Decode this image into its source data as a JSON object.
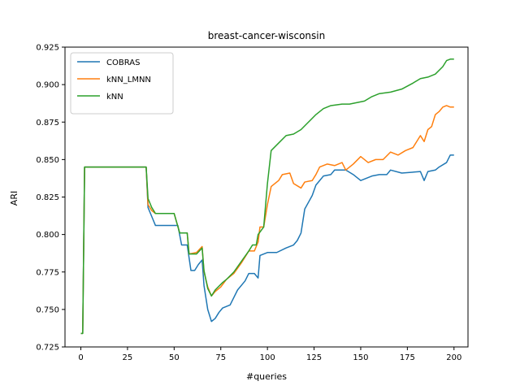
{
  "chart_data": {
    "type": "line",
    "title": "breast-cancer-wisconsin",
    "xlabel": "#queries",
    "ylabel": "ARI",
    "xlim": [
      -8.5,
      207.5
    ],
    "ylim": [
      0.725,
      0.925
    ],
    "xticks": [
      0,
      25,
      50,
      75,
      100,
      125,
      150,
      175,
      200
    ],
    "yticks": [
      0.725,
      0.75,
      0.775,
      0.8,
      0.825,
      0.85,
      0.875,
      0.9,
      0.925
    ],
    "xtick_labels": [
      "0",
      "25",
      "50",
      "75",
      "100",
      "125",
      "150",
      "175",
      "200"
    ],
    "ytick_labels": [
      "0.725",
      "0.750",
      "0.775",
      "0.800",
      "0.825",
      "0.850",
      "0.875",
      "0.900",
      "0.925"
    ],
    "grid": false,
    "legend_position": "top-left",
    "series": [
      {
        "name": "COBRAS",
        "color": "#1f77b4",
        "points": [
          [
            0,
            0.734
          ],
          [
            1,
            0.734
          ],
          [
            2,
            0.845
          ],
          [
            35,
            0.845
          ],
          [
            36,
            0.818
          ],
          [
            38,
            0.812
          ],
          [
            40,
            0.806
          ],
          [
            52,
            0.806
          ],
          [
            54,
            0.793
          ],
          [
            57,
            0.793
          ],
          [
            59,
            0.776
          ],
          [
            61,
            0.776
          ],
          [
            63,
            0.78
          ],
          [
            65,
            0.783
          ],
          [
            66,
            0.766
          ],
          [
            68,
            0.75
          ],
          [
            70,
            0.742
          ],
          [
            72,
            0.744
          ],
          [
            74,
            0.748
          ],
          [
            76,
            0.751
          ],
          [
            80,
            0.753
          ],
          [
            84,
            0.763
          ],
          [
            88,
            0.769
          ],
          [
            90,
            0.774
          ],
          [
            93,
            0.774
          ],
          [
            95,
            0.771
          ],
          [
            96,
            0.786
          ],
          [
            100,
            0.788
          ],
          [
            105,
            0.788
          ],
          [
            110,
            0.791
          ],
          [
            114,
            0.793
          ],
          [
            116,
            0.796
          ],
          [
            118,
            0.801
          ],
          [
            120,
            0.817
          ],
          [
            124,
            0.826
          ],
          [
            126,
            0.833
          ],
          [
            128,
            0.836
          ],
          [
            130,
            0.839
          ],
          [
            134,
            0.84
          ],
          [
            136,
            0.843
          ],
          [
            142,
            0.843
          ],
          [
            146,
            0.84
          ],
          [
            150,
            0.836
          ],
          [
            156,
            0.839
          ],
          [
            160,
            0.84
          ],
          [
            164,
            0.84
          ],
          [
            166,
            0.843
          ],
          [
            172,
            0.841
          ],
          [
            182,
            0.842
          ],
          [
            184,
            0.836
          ],
          [
            186,
            0.842
          ],
          [
            190,
            0.843
          ],
          [
            192,
            0.845
          ],
          [
            196,
            0.848
          ],
          [
            198,
            0.853
          ],
          [
            200,
            0.853
          ]
        ]
      },
      {
        "name": "kNN_LMNN",
        "color": "#ff7f0e",
        "points": [
          [
            0,
            0.734
          ],
          [
            1,
            0.734
          ],
          [
            2,
            0.845
          ],
          [
            35,
            0.845
          ],
          [
            36,
            0.82
          ],
          [
            38,
            0.816
          ],
          [
            40,
            0.814
          ],
          [
            50,
            0.814
          ],
          [
            53,
            0.801
          ],
          [
            57,
            0.801
          ],
          [
            58,
            0.787
          ],
          [
            62,
            0.788
          ],
          [
            65,
            0.792
          ],
          [
            66,
            0.775
          ],
          [
            68,
            0.765
          ],
          [
            70,
            0.759
          ],
          [
            72,
            0.762
          ],
          [
            75,
            0.765
          ],
          [
            78,
            0.77
          ],
          [
            82,
            0.774
          ],
          [
            86,
            0.781
          ],
          [
            90,
            0.789
          ],
          [
            93,
            0.789
          ],
          [
            95,
            0.795
          ],
          [
            96,
            0.805
          ],
          [
            98,
            0.805
          ],
          [
            100,
            0.82
          ],
          [
            102,
            0.832
          ],
          [
            106,
            0.836
          ],
          [
            108,
            0.84
          ],
          [
            112,
            0.841
          ],
          [
            114,
            0.834
          ],
          [
            118,
            0.831
          ],
          [
            120,
            0.835
          ],
          [
            124,
            0.836
          ],
          [
            126,
            0.84
          ],
          [
            128,
            0.845
          ],
          [
            132,
            0.847
          ],
          [
            136,
            0.846
          ],
          [
            140,
            0.848
          ],
          [
            142,
            0.843
          ],
          [
            146,
            0.847
          ],
          [
            150,
            0.852
          ],
          [
            154,
            0.848
          ],
          [
            158,
            0.85
          ],
          [
            162,
            0.85
          ],
          [
            166,
            0.855
          ],
          [
            170,
            0.853
          ],
          [
            174,
            0.856
          ],
          [
            178,
            0.858
          ],
          [
            180,
            0.862
          ],
          [
            182,
            0.866
          ],
          [
            184,
            0.862
          ],
          [
            186,
            0.87
          ],
          [
            188,
            0.872
          ],
          [
            190,
            0.88
          ],
          [
            192,
            0.882
          ],
          [
            194,
            0.885
          ],
          [
            196,
            0.886
          ],
          [
            198,
            0.885
          ],
          [
            200,
            0.885
          ]
        ]
      },
      {
        "name": "kNN",
        "color": "#2ca02c",
        "points": [
          [
            0,
            0.734
          ],
          [
            1,
            0.734
          ],
          [
            2,
            0.845
          ],
          [
            35,
            0.845
          ],
          [
            36,
            0.824
          ],
          [
            38,
            0.818
          ],
          [
            40,
            0.814
          ],
          [
            50,
            0.814
          ],
          [
            53,
            0.801
          ],
          [
            57,
            0.801
          ],
          [
            58,
            0.787
          ],
          [
            62,
            0.787
          ],
          [
            65,
            0.791
          ],
          [
            66,
            0.776
          ],
          [
            68,
            0.764
          ],
          [
            70,
            0.759
          ],
          [
            72,
            0.763
          ],
          [
            76,
            0.768
          ],
          [
            78,
            0.77
          ],
          [
            82,
            0.775
          ],
          [
            86,
            0.782
          ],
          [
            90,
            0.789
          ],
          [
            92,
            0.793
          ],
          [
            94,
            0.793
          ],
          [
            95,
            0.8
          ],
          [
            98,
            0.805
          ],
          [
            100,
            0.834
          ],
          [
            102,
            0.856
          ],
          [
            106,
            0.861
          ],
          [
            110,
            0.866
          ],
          [
            114,
            0.867
          ],
          [
            118,
            0.87
          ],
          [
            122,
            0.875
          ],
          [
            126,
            0.88
          ],
          [
            130,
            0.884
          ],
          [
            134,
            0.886
          ],
          [
            140,
            0.887
          ],
          [
            144,
            0.887
          ],
          [
            148,
            0.888
          ],
          [
            152,
            0.889
          ],
          [
            156,
            0.892
          ],
          [
            160,
            0.894
          ],
          [
            166,
            0.895
          ],
          [
            172,
            0.897
          ],
          [
            178,
            0.901
          ],
          [
            182,
            0.904
          ],
          [
            186,
            0.905
          ],
          [
            190,
            0.907
          ],
          [
            194,
            0.912
          ],
          [
            196,
            0.916
          ],
          [
            198,
            0.917
          ],
          [
            200,
            0.917
          ]
        ]
      }
    ]
  }
}
